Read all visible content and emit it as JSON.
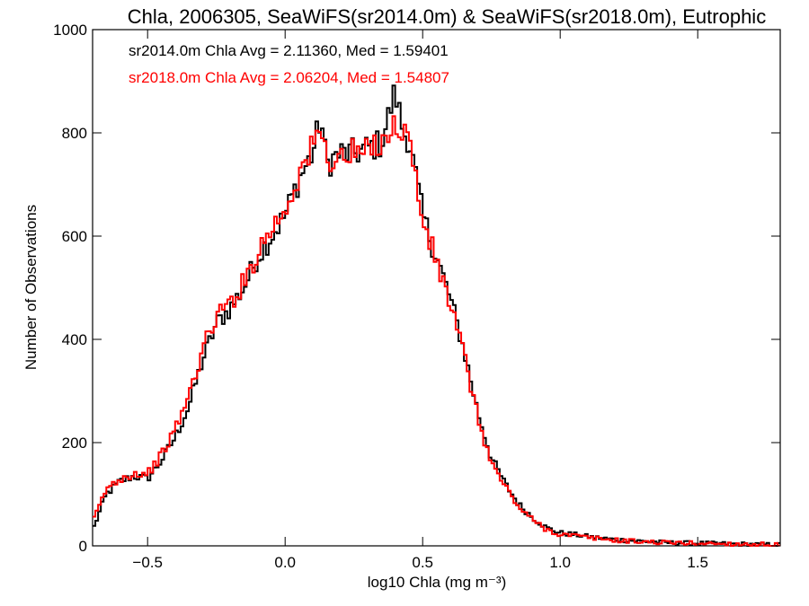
{
  "chart_data": {
    "type": "line",
    "step": true,
    "title": "Chla, 2006305, SeaWiFS(sr2014.0m) & SeaWiFS(sr2018.0m), Eutrophic",
    "xlabel": "log10 Chla (mg m⁻³)",
    "ylabel": "Number of Observations",
    "xlim": [
      -0.7,
      1.8
    ],
    "ylim": [
      0,
      1000
    ],
    "xticks": [
      -0.5,
      0.0,
      0.5,
      1.0,
      1.5
    ],
    "xtick_labels": [
      "−0.5",
      "0.0",
      "0.5",
      "1.0",
      "1.5"
    ],
    "yticks": [
      0,
      200,
      400,
      600,
      800,
      1000
    ],
    "ytick_labels": [
      "0",
      "200",
      "400",
      "600",
      "800",
      "1000"
    ],
    "grid": false,
    "annotations": [
      {
        "text": "sr2014.0m Chla Avg = 2.11360, Med = 1.59401",
        "color": "#000000"
      },
      {
        "text": "sr2018.0m Chla Avg = 2.06204, Med = 1.54807",
        "color": "#ff0000"
      }
    ],
    "series": [
      {
        "color": "#000000",
        "x": [
          -0.7,
          -0.65,
          -0.6,
          -0.55,
          -0.5,
          -0.45,
          -0.4,
          -0.35,
          -0.3,
          -0.25,
          -0.2,
          -0.15,
          -0.1,
          -0.05,
          0.0,
          0.05,
          0.1,
          0.13,
          0.15,
          0.2,
          0.25,
          0.3,
          0.35,
          0.4,
          0.43,
          0.45,
          0.5,
          0.55,
          0.6,
          0.65,
          0.7,
          0.75,
          0.8,
          0.85,
          0.9,
          0.95,
          1.0,
          1.05,
          1.1,
          1.2,
          1.3,
          1.4,
          1.5,
          1.6,
          1.7,
          1.8
        ],
        "y": [
          30,
          100,
          125,
          135,
          130,
          165,
          210,
          270,
          360,
          430,
          460,
          500,
          560,
          600,
          640,
          710,
          760,
          830,
          740,
          760,
          760,
          770,
          780,
          880,
          800,
          790,
          640,
          560,
          480,
          380,
          260,
          170,
          120,
          80,
          55,
          35,
          25,
          22,
          18,
          12,
          9,
          6,
          5,
          4,
          3,
          2
        ]
      },
      {
        "color": "#ff0000",
        "x": [
          -0.7,
          -0.65,
          -0.6,
          -0.55,
          -0.5,
          -0.45,
          -0.4,
          -0.35,
          -0.3,
          -0.25,
          -0.2,
          -0.15,
          -0.1,
          -0.05,
          0.0,
          0.05,
          0.1,
          0.13,
          0.15,
          0.2,
          0.25,
          0.3,
          0.35,
          0.4,
          0.43,
          0.45,
          0.5,
          0.55,
          0.6,
          0.65,
          0.7,
          0.75,
          0.8,
          0.85,
          0.9,
          0.95,
          1.0,
          1.05,
          1.1,
          1.2,
          1.3,
          1.4,
          1.5,
          1.6,
          1.7,
          1.8
        ],
        "y": [
          45,
          110,
          130,
          140,
          140,
          175,
          225,
          290,
          380,
          445,
          470,
          510,
          570,
          615,
          650,
          720,
          770,
          810,
          750,
          750,
          760,
          760,
          790,
          810,
          810,
          790,
          630,
          550,
          470,
          370,
          250,
          160,
          115,
          75,
          50,
          32,
          22,
          20,
          16,
          11,
          8,
          6,
          5,
          4,
          3,
          2
        ]
      }
    ]
  }
}
